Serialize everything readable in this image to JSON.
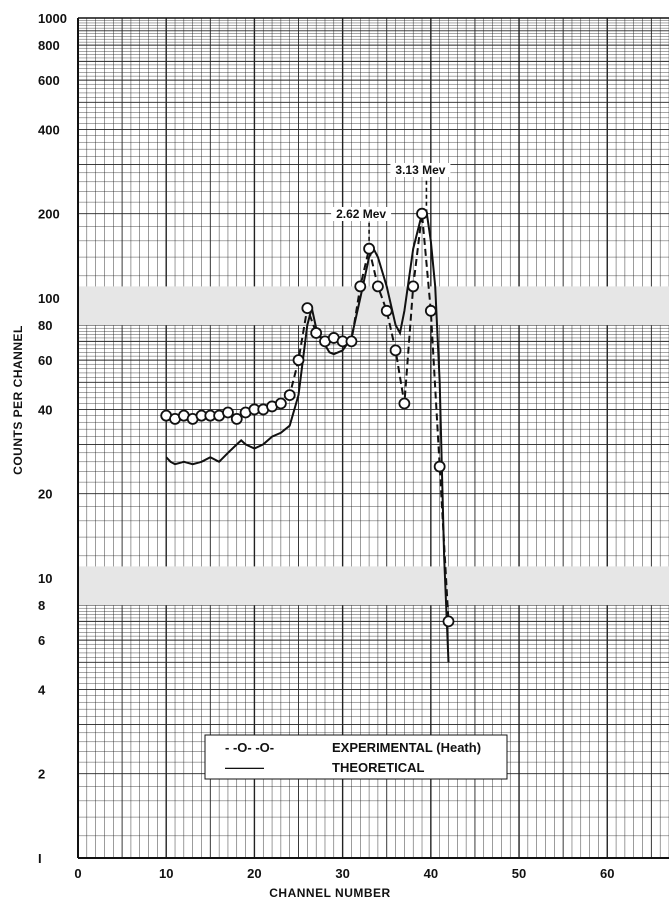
{
  "chart_data": {
    "type": "line",
    "xlabel": "CHANNEL NUMBER",
    "ylabel": "COUNTS PER CHANNEL",
    "x_scale": "linear",
    "y_scale": "log",
    "xlim": [
      0,
      67
    ],
    "ylim": [
      1,
      1000
    ],
    "x_ticks": [
      "0",
      "10",
      "20",
      "30",
      "40",
      "50",
      "60"
    ],
    "y_ticks": [
      {
        "value": 1000,
        "label": "1000"
      },
      {
        "value": 800,
        "label": "800"
      },
      {
        "value": 600,
        "label": "600"
      },
      {
        "value": 400,
        "label": "400"
      },
      {
        "value": 200,
        "label": "200"
      },
      {
        "value": 100,
        "label": "100"
      },
      {
        "value": 80,
        "label": "80"
      },
      {
        "value": 60,
        "label": "60"
      },
      {
        "value": 40,
        "label": "40"
      },
      {
        "value": 20,
        "label": "20"
      },
      {
        "value": 10,
        "label": "10"
      },
      {
        "value": 8,
        "label": "8"
      },
      {
        "value": 6,
        "label": "6"
      },
      {
        "value": 4,
        "label": "4"
      },
      {
        "value": 2,
        "label": "2"
      },
      {
        "value": 1,
        "label": "I"
      }
    ],
    "grid": true,
    "legend_position": "bottom-center",
    "series": [
      {
        "name": "EXPERIMENTAL (Heath)",
        "style": "dashed-circles",
        "x": [
          10,
          11,
          12,
          13,
          14,
          15,
          16,
          17,
          18,
          19,
          20,
          21,
          22,
          23,
          24,
          25,
          26,
          27,
          28,
          29,
          30,
          31,
          32,
          33,
          34,
          35,
          36,
          37,
          38,
          39,
          40,
          41,
          42
        ],
        "y": [
          38,
          37,
          38,
          37,
          38,
          38,
          38,
          39,
          37,
          39,
          40,
          40,
          41,
          42,
          45,
          60,
          92,
          75,
          70,
          72,
          70,
          70,
          110,
          150,
          110,
          90,
          65,
          42,
          110,
          200,
          90,
          25,
          7
        ]
      },
      {
        "name": "THEORETICAL",
        "style": "solid",
        "x": [
          10,
          10.5,
          11,
          12,
          13,
          14,
          15,
          16,
          17,
          18,
          18.5,
          19,
          20,
          21,
          22,
          23,
          24,
          25,
          25.5,
          26,
          26.5,
          27,
          28,
          28.5,
          29,
          30,
          31,
          32,
          33,
          33.5,
          34,
          35,
          36,
          36.5,
          37,
          38,
          39,
          39.5,
          40,
          40.5,
          41,
          41.5,
          42
        ],
        "y": [
          27,
          26,
          25.5,
          26,
          25.5,
          26,
          27,
          26,
          28,
          30,
          31,
          30,
          29,
          30,
          32,
          33,
          35,
          45,
          60,
          80,
          92,
          78,
          68,
          64,
          63,
          65,
          72,
          100,
          140,
          150,
          140,
          110,
          80,
          75,
          90,
          150,
          200,
          205,
          160,
          110,
          50,
          12,
          5
        ]
      }
    ],
    "annotations": [
      {
        "text": "2.62 Mev",
        "x": 33,
        "y": 150
      },
      {
        "text": "3.13 Mev",
        "x": 39.5,
        "y": 200
      }
    ],
    "legend": {
      "entries": [
        {
          "symbol": "- -O- -O-",
          "label": "EXPERIMENTAL (Heath)"
        },
        {
          "symbol": "———",
          "label": "THEORETICAL"
        }
      ]
    }
  }
}
